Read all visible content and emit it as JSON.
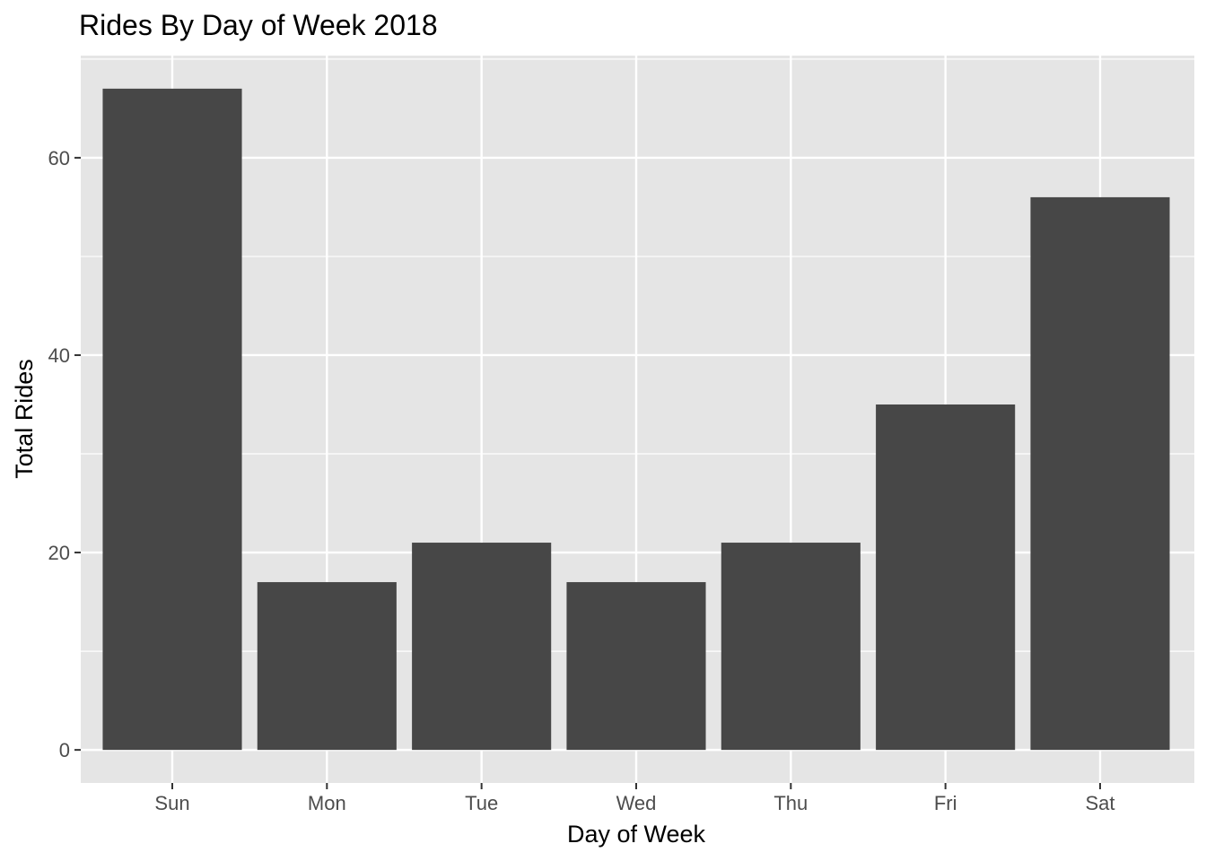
{
  "chart_data": {
    "type": "bar",
    "title": "Rides By Day of Week 2018",
    "xlabel": "Day of Week",
    "ylabel": "Total Rides",
    "categories": [
      "Sun",
      "Mon",
      "Tue",
      "Wed",
      "Thu",
      "Fri",
      "Sat"
    ],
    "values": [
      67,
      17,
      21,
      17,
      21,
      35,
      56
    ],
    "ylim": [
      -3.35,
      70.35
    ],
    "y_ticks": [
      0,
      20,
      40,
      60
    ],
    "y_tick_labels": [
      "0",
      "20",
      "40",
      "60"
    ],
    "grid": true,
    "legend": "none",
    "colors": {
      "bar": "#474747",
      "panel": "#e5e5e5",
      "grid": "#ffffff",
      "tick_text": "#4d4d4d",
      "tick_mark": "#333333"
    }
  }
}
